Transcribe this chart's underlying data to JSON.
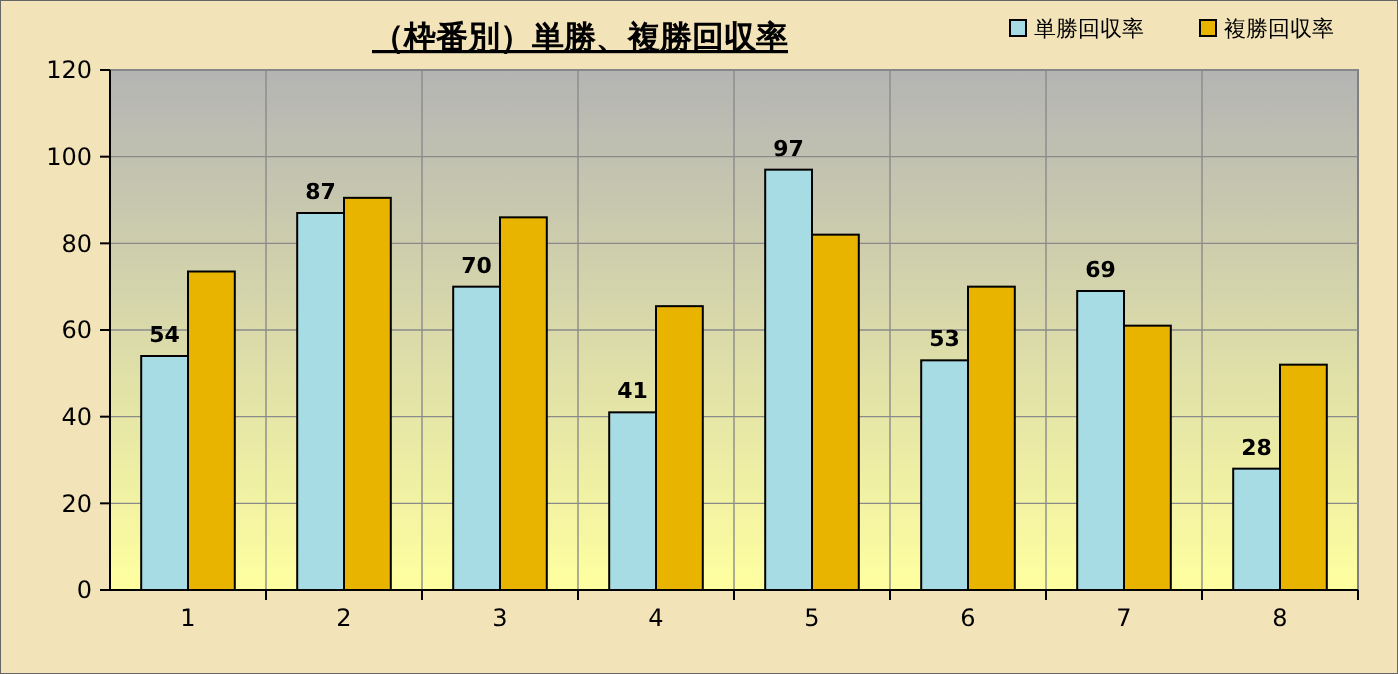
{
  "chart_data": {
    "type": "bar",
    "title": "（枠番別）単勝、複勝回収率",
    "categories": [
      "1",
      "2",
      "3",
      "4",
      "5",
      "6",
      "7",
      "8"
    ],
    "series": [
      {
        "name": "単勝回収率",
        "color": "#a8dce4",
        "values": [
          54,
          87,
          70,
          41,
          97,
          53,
          69,
          28
        ],
        "value_labels": [
          "54",
          "87",
          "70",
          "41",
          "97",
          "53",
          "69",
          "28"
        ]
      },
      {
        "name": "複勝回収率",
        "color": "#e8b400",
        "values": [
          73.5,
          90.5,
          86,
          65.5,
          82,
          70,
          61,
          52
        ]
      }
    ],
    "ylim": [
      0,
      120
    ],
    "yticks": [
      0,
      20,
      40,
      60,
      80,
      100,
      120
    ],
    "grid": true,
    "legend": "top right"
  }
}
